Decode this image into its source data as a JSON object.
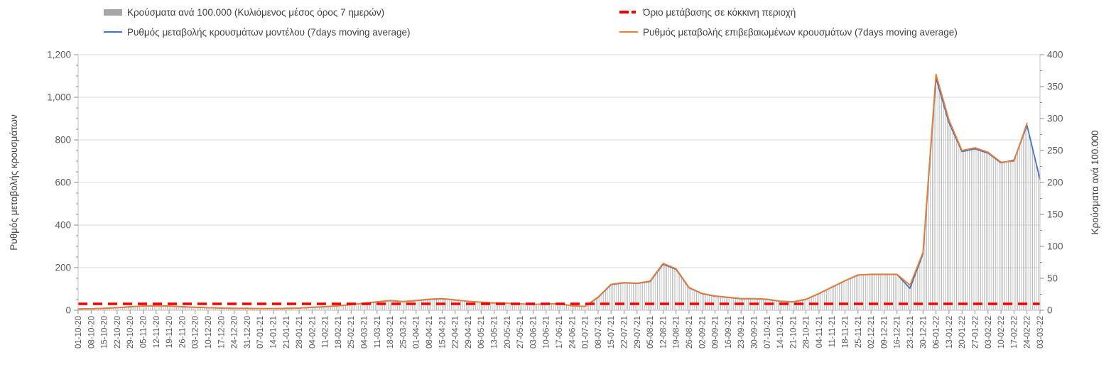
{
  "legend": {
    "items": [
      {
        "label": "Κρούσματα ανά 100.000 (Κυλιόμενος μέσος όρος 7 ημερών)",
        "color": "#a6a6a6",
        "marker": "bar-swatch"
      },
      {
        "label": "Όριο μετάβασης σε κόκκινη περιοχή",
        "color": "#ee0000",
        "marker": "red-dashed-line"
      },
      {
        "label": "Ρυθμός μεταβολής κρουσμάτων μοντέλου (7days moving average)",
        "color": "#4472c4",
        "marker": "blue-line"
      },
      {
        "label": "Ρυθμός μεταβολής επιβεβαιωμένων κρουσμάτων (7days moving average)",
        "color": "#ed7d31",
        "marker": "orange-line"
      }
    ]
  },
  "axes": {
    "left_title": "Ρυθμός μεταβολής κρουσμάτων",
    "right_title": "Κρούσματα ανά 100.000",
    "left_tick_labels": [
      "0",
      "200",
      "400",
      "600",
      "800",
      "1,000",
      "1,200"
    ],
    "right_tick_labels": [
      "0",
      "50",
      "100",
      "150",
      "200",
      "250",
      "300",
      "350",
      "400"
    ]
  },
  "chart_data": {
    "type": "bar",
    "subtype": "combo-daily-bars-with-lines",
    "title": "",
    "xlabel": "",
    "left_axis": {
      "label": "Ρυθμός μεταβολής κρουσμάτων",
      "range": [
        0,
        1200
      ],
      "major_step": 200,
      "minor_step": 50
    },
    "right_axis": {
      "label": "Κρούσματα ανά 100.000",
      "range": [
        0,
        400
      ],
      "major_step": 50,
      "minor_step": 25
    },
    "grid": "horizontal-only",
    "legend_position": "top",
    "categories": [
      "01-10-20",
      "08-10-20",
      "15-10-20",
      "22-10-20",
      "29-10-20",
      "05-11-20",
      "12-11-20",
      "19-11-20",
      "26-11-20",
      "03-12-20",
      "10-12-20",
      "17-12-20",
      "24-12-20",
      "31-12-20",
      "07-01-21",
      "14-01-21",
      "21-01-21",
      "28-01-21",
      "04-02-21",
      "11-02-21",
      "18-02-21",
      "25-02-21",
      "04-03-21",
      "11-03-21",
      "18-03-21",
      "25-03-21",
      "01-04-21",
      "08-04-21",
      "15-04-21",
      "22-04-21",
      "29-04-21",
      "06-05-21",
      "13-05-21",
      "20-05-21",
      "27-05-21",
      "03-06-21",
      "10-06-21",
      "17-06-21",
      "24-06-21",
      "01-07-21",
      "08-07-21",
      "15-07-21",
      "22-07-21",
      "29-07-21",
      "05-08-21",
      "12-08-21",
      "19-08-21",
      "26-08-21",
      "02-09-21",
      "09-09-21",
      "16-09-21",
      "23-09-21",
      "30-09-21",
      "07-10-21",
      "14-10-21",
      "21-10-21",
      "28-10-21",
      "04-11-21",
      "11-11-21",
      "18-11-21",
      "25-11-21",
      "02-12-21",
      "09-12-21",
      "16-12-21",
      "23-12-21",
      "30-12-21",
      "06-01-22",
      "13-01-22",
      "20-01-22",
      "27-01-22",
      "03-02-22",
      "10-02-22",
      "17-02-22",
      "24-02-22",
      "03-03-22"
    ],
    "series": [
      {
        "name": "Κρούσματα ανά 100.000 (Κυλιόμενος μέσος όρος 7 ημερών)",
        "type": "bar",
        "axis": "right",
        "color": "#ababab",
        "values": [
          2,
          2.5,
          3,
          4,
          5.5,
          6.5,
          7,
          6.5,
          5.5,
          4.5,
          4,
          3.5,
          3,
          3,
          2.5,
          2.5,
          3,
          3.5,
          4.5,
          5.5,
          7,
          8.5,
          11,
          13,
          15,
          13.5,
          15,
          17,
          18,
          16,
          14,
          12.5,
          11.5,
          11,
          10,
          9,
          10,
          10,
          7,
          6,
          20,
          40,
          43,
          42,
          45,
          72,
          64,
          35,
          26,
          22,
          20,
          18,
          18,
          17,
          14,
          13,
          17,
          26,
          36,
          46,
          55,
          56,
          56,
          56,
          38,
          90,
          365,
          290,
          248,
          252,
          245,
          230,
          235,
          290,
          203
        ]
      },
      {
        "name": "Ρυθμός μεταβολής κρουσμάτων μοντέλου (7days moving average)",
        "type": "line",
        "axis": "left",
        "color": "#4472c4",
        "values": [
          6,
          7,
          9,
          12,
          16,
          20,
          21,
          20,
          16,
          14,
          12,
          10,
          9,
          9,
          8,
          8,
          9,
          10,
          14,
          16,
          21,
          26,
          33,
          39,
          45,
          40,
          45,
          51,
          54,
          48,
          42,
          38,
          34,
          33,
          30,
          27,
          30,
          30,
          21,
          18,
          60,
          120,
          129,
          126,
          135,
          216,
          192,
          105,
          78,
          66,
          60,
          54,
          54,
          51,
          42,
          39,
          51,
          78,
          108,
          138,
          165,
          168,
          168,
          168,
          103,
          265,
          1090,
          880,
          745,
          758,
          738,
          692,
          705,
          868,
          615
        ]
      },
      {
        "name": "Ρυθμός μεταβολής επιβεβαιωμένων κρουσμάτων (7days moving average)",
        "type": "line",
        "axis": "left",
        "color": "#ed7d31",
        "values": [
          5,
          7,
          9,
          12,
          17,
          20,
          21,
          20,
          17,
          14,
          12,
          10,
          9,
          9,
          8,
          8,
          9,
          10,
          14,
          17,
          21,
          26,
          33,
          40,
          46,
          41,
          46,
          52,
          55,
          49,
          42,
          38,
          35,
          33,
          30,
          27,
          30,
          31,
          21,
          18,
          62,
          122,
          130,
          127,
          137,
          220,
          195,
          107,
          79,
          67,
          61,
          55,
          55,
          52,
          43,
          40,
          52,
          79,
          109,
          139,
          166,
          169,
          169,
          169,
          118,
          272,
          1108,
          893,
          750,
          763,
          742,
          695,
          700,
          878,
          null
        ]
      },
      {
        "name": "Όριο μετάβασης σε κόκκινη περιοχή",
        "type": "threshold-line",
        "axis": "left",
        "color": "#ee0000",
        "value_left_axis": 30,
        "value_right_axis": 10,
        "style": "dashed"
      }
    ]
  }
}
